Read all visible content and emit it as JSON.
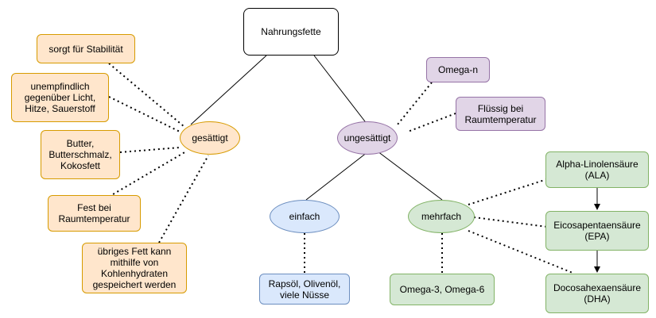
{
  "diagram": {
    "root": "Nahrungsfette",
    "saturated": {
      "label": "gesättigt",
      "notes": [
        "sorgt für Stabilität",
        "unempfindlich\ngegenüber Licht,\nHitze, Sauerstoff",
        "Butter,\nButterschmalz,\nKokosfett",
        "Fest bei\nRaumtemperatur",
        "übriges Fett kann\nmithilfe von\nKohlenhydraten\ngespeichert werden"
      ]
    },
    "unsaturated": {
      "label": "ungesättigt",
      "notes": [
        "Omega-n",
        "Flüssig bei\nRaumtemperatur"
      ],
      "mono": {
        "label": "einfach",
        "example": "Rapsöl, Olivenöl,\nviele Nüsse"
      },
      "poly": {
        "label": "mehrfach",
        "example": "Omega-3, Omega-6",
        "acids": [
          "Alpha-Linolensäure\n(ALA)",
          "Eicosapentaensäure\n(EPA)",
          "Docosahexaensäure\n(DHA)"
        ]
      }
    }
  }
}
